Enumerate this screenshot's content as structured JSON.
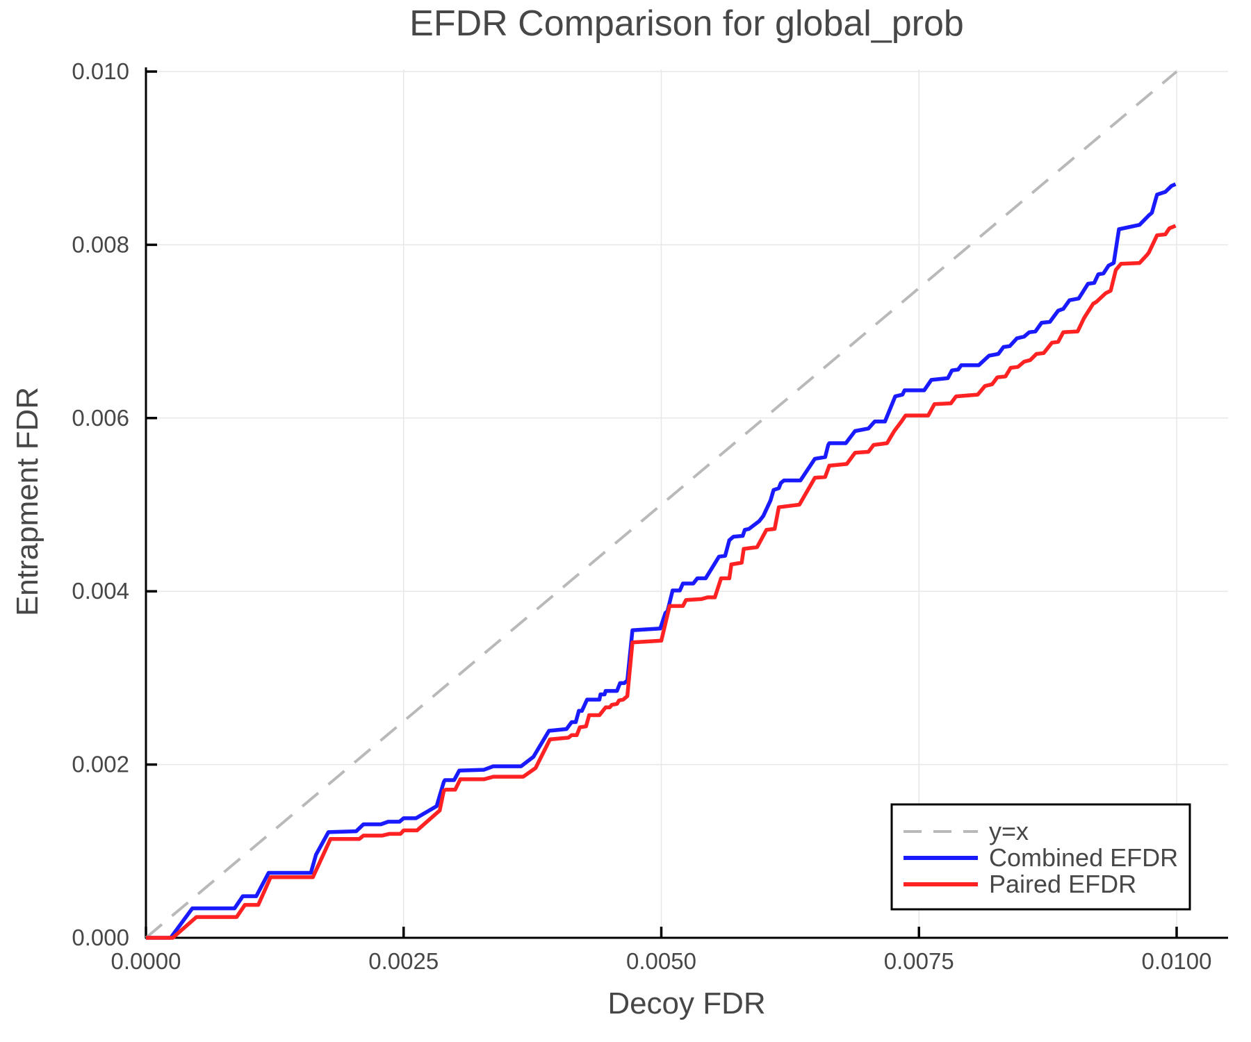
{
  "chart_data": {
    "type": "line",
    "title": "EFDR Comparison for global_prob",
    "xlabel": "Decoy FDR",
    "ylabel": "Entrapment FDR",
    "xlim": [
      0,
      0.0105
    ],
    "ylim": [
      0,
      0.0101
    ],
    "grid": true,
    "legend_position": "lower right",
    "colors": {
      "reference": "#b9b9b9",
      "combined": "#1a1aff",
      "paired": "#ff2222",
      "gridline": "#e7e7e7",
      "axis": "#000000",
      "text": "#474747"
    },
    "xticks": {
      "values": [
        0,
        0.0025,
        0.005,
        0.0075,
        0.01
      ],
      "labels": [
        "0.0000",
        "0.0025",
        "0.0050",
        "0.0075",
        "0.0100"
      ]
    },
    "yticks": {
      "values": [
        0,
        0.002,
        0.004,
        0.006,
        0.008,
        0.01
      ],
      "labels": [
        "0.000",
        "0.002",
        "0.004",
        "0.006",
        "0.008",
        "0.010"
      ]
    },
    "series": [
      {
        "name": "y=x",
        "color": "#b9b9b9",
        "dash": true,
        "width": 4,
        "points": [
          [
            0,
            0
          ],
          [
            0.01,
            0.01
          ]
        ]
      },
      {
        "name": "Combined EFDR",
        "color": "#1a1aff",
        "dash": false,
        "width": 5.5,
        "points": [
          [
            0,
            0
          ],
          [
            0.00024,
            0
          ],
          [
            0.00045,
            0.00034
          ],
          [
            0.00086,
            0.00034
          ],
          [
            0.00094,
            0.00048
          ],
          [
            0.00107,
            0.00048
          ],
          [
            0.00119,
            0.00075
          ],
          [
            0.0016,
            0.00075
          ],
          [
            0.00165,
            0.00096
          ],
          [
            0.00177,
            0.00122
          ],
          [
            0.00204,
            0.00123
          ],
          [
            0.00211,
            0.00131
          ],
          [
            0.00228,
            0.00131
          ],
          [
            0.00235,
            0.00134
          ],
          [
            0.00246,
            0.00134
          ],
          [
            0.0025,
            0.00138
          ],
          [
            0.00262,
            0.00138
          ],
          [
            0.00282,
            0.00152
          ],
          [
            0.00283,
            0.00156
          ],
          [
            0.00289,
            0.0018
          ],
          [
            0.0029,
            0.00182
          ],
          [
            0.00299,
            0.00182
          ],
          [
            0.00304,
            0.00193
          ],
          [
            0.00328,
            0.00194
          ],
          [
            0.00337,
            0.00198
          ],
          [
            0.00364,
            0.00198
          ],
          [
            0.00376,
            0.00209
          ],
          [
            0.00391,
            0.00239
          ],
          [
            0.00408,
            0.00241
          ],
          [
            0.00413,
            0.00249
          ],
          [
            0.00417,
            0.00249
          ],
          [
            0.0042,
            0.00262
          ],
          [
            0.00423,
            0.00262
          ],
          [
            0.00428,
            0.00275
          ],
          [
            0.0044,
            0.00275
          ],
          [
            0.00441,
            0.00281
          ],
          [
            0.00445,
            0.00281
          ],
          [
            0.00446,
            0.00285
          ],
          [
            0.00457,
            0.00285
          ],
          [
            0.0046,
            0.00294
          ],
          [
            0.00464,
            0.00294
          ],
          [
            0.00467,
            0.00297
          ],
          [
            0.00472,
            0.00355
          ],
          [
            0.00499,
            0.00357
          ],
          [
            0.00504,
            0.00375
          ],
          [
            0.00506,
            0.00377
          ],
          [
            0.00511,
            0.00401
          ],
          [
            0.00518,
            0.00401
          ],
          [
            0.00521,
            0.00409
          ],
          [
            0.00531,
            0.00409
          ],
          [
            0.00535,
            0.00415
          ],
          [
            0.00543,
            0.00415
          ],
          [
            0.00556,
            0.0044
          ],
          [
            0.00562,
            0.00441
          ],
          [
            0.00566,
            0.00459
          ],
          [
            0.0057,
            0.00463
          ],
          [
            0.00579,
            0.00464
          ],
          [
            0.00581,
            0.00471
          ],
          [
            0.00585,
            0.00472
          ],
          [
            0.00595,
            0.00481
          ],
          [
            0.00599,
            0.00487
          ],
          [
            0.00606,
            0.00505
          ],
          [
            0.00609,
            0.00517
          ],
          [
            0.00614,
            0.00519
          ],
          [
            0.00616,
            0.00525
          ],
          [
            0.00619,
            0.00528
          ],
          [
            0.00635,
            0.00528
          ],
          [
            0.00649,
            0.00553
          ],
          [
            0.00659,
            0.00555
          ],
          [
            0.00662,
            0.00569
          ],
          [
            0.00663,
            0.00571
          ],
          [
            0.00679,
            0.00571
          ],
          [
            0.00688,
            0.00585
          ],
          [
            0.00701,
            0.00588
          ],
          [
            0.00707,
            0.00596
          ],
          [
            0.00717,
            0.00596
          ],
          [
            0.00727,
            0.00625
          ],
          [
            0.00734,
            0.00627
          ],
          [
            0.00736,
            0.00632
          ],
          [
            0.00755,
            0.00632
          ],
          [
            0.00762,
            0.00644
          ],
          [
            0.00778,
            0.00646
          ],
          [
            0.00782,
            0.00655
          ],
          [
            0.00788,
            0.00656
          ],
          [
            0.00791,
            0.00661
          ],
          [
            0.00808,
            0.00661
          ],
          [
            0.00818,
            0.00672
          ],
          [
            0.00827,
            0.00674
          ],
          [
            0.00832,
            0.00682
          ],
          [
            0.00838,
            0.00683
          ],
          [
            0.00845,
            0.00692
          ],
          [
            0.00852,
            0.00694
          ],
          [
            0.00857,
            0.00699
          ],
          [
            0.00863,
            0.007
          ],
          [
            0.00869,
            0.0071
          ],
          [
            0.00877,
            0.00711
          ],
          [
            0.00885,
            0.00724
          ],
          [
            0.0089,
            0.00726
          ],
          [
            0.00896,
            0.00736
          ],
          [
            0.00905,
            0.00738
          ],
          [
            0.00914,
            0.00755
          ],
          [
            0.0092,
            0.00756
          ],
          [
            0.00924,
            0.00766
          ],
          [
            0.00929,
            0.00767
          ],
          [
            0.00934,
            0.00776
          ],
          [
            0.00939,
            0.00779
          ],
          [
            0.00944,
            0.00818
          ],
          [
            0.00964,
            0.00823
          ],
          [
            0.00973,
            0.00834
          ],
          [
            0.00976,
            0.00837
          ],
          [
            0.00981,
            0.00858
          ],
          [
            0.00989,
            0.00861
          ],
          [
            0.00995,
            0.00868
          ],
          [
            0.00999,
            0.0087
          ]
        ]
      },
      {
        "name": "Paired EFDR",
        "color": "#ff2222",
        "dash": false,
        "width": 5.5,
        "points": [
          [
            0,
            0
          ],
          [
            0.00026,
            0
          ],
          [
            0.00049,
            0.00024
          ],
          [
            0.00088,
            0.00024
          ],
          [
            0.00096,
            0.00038
          ],
          [
            0.00109,
            0.00038
          ],
          [
            0.00121,
            0.0007
          ],
          [
            0.00162,
            0.0007
          ],
          [
            0.00179,
            0.00114
          ],
          [
            0.00207,
            0.00114
          ],
          [
            0.00211,
            0.00118
          ],
          [
            0.00229,
            0.00118
          ],
          [
            0.00236,
            0.0012
          ],
          [
            0.00247,
            0.0012
          ],
          [
            0.0025,
            0.00124
          ],
          [
            0.00263,
            0.00124
          ],
          [
            0.00285,
            0.00147
          ],
          [
            0.00289,
            0.0017
          ],
          [
            0.00291,
            0.00171
          ],
          [
            0.003,
            0.00171
          ],
          [
            0.00305,
            0.00183
          ],
          [
            0.00328,
            0.00183
          ],
          [
            0.00337,
            0.00186
          ],
          [
            0.00366,
            0.00186
          ],
          [
            0.00378,
            0.00196
          ],
          [
            0.00392,
            0.00229
          ],
          [
            0.0041,
            0.00231
          ],
          [
            0.00413,
            0.00234
          ],
          [
            0.00418,
            0.00234
          ],
          [
            0.00421,
            0.00243
          ],
          [
            0.00427,
            0.00244
          ],
          [
            0.0043,
            0.00257
          ],
          [
            0.0044,
            0.00257
          ],
          [
            0.00446,
            0.00266
          ],
          [
            0.0045,
            0.00266
          ],
          [
            0.00452,
            0.00269
          ],
          [
            0.00457,
            0.0027
          ],
          [
            0.00459,
            0.00274
          ],
          [
            0.00463,
            0.00275
          ],
          [
            0.00467,
            0.00279
          ],
          [
            0.00472,
            0.00341
          ],
          [
            0.005,
            0.00343
          ],
          [
            0.00508,
            0.00383
          ],
          [
            0.00521,
            0.00383
          ],
          [
            0.00524,
            0.0039
          ],
          [
            0.00539,
            0.00391
          ],
          [
            0.00545,
            0.00393
          ],
          [
            0.00552,
            0.00393
          ],
          [
            0.00558,
            0.00415
          ],
          [
            0.00566,
            0.00415
          ],
          [
            0.00568,
            0.00431
          ],
          [
            0.00578,
            0.00433
          ],
          [
            0.0058,
            0.00449
          ],
          [
            0.00593,
            0.00451
          ],
          [
            0.00602,
            0.00471
          ],
          [
            0.0061,
            0.00472
          ],
          [
            0.00614,
            0.00497
          ],
          [
            0.00634,
            0.005
          ],
          [
            0.00649,
            0.00531
          ],
          [
            0.00659,
            0.00532
          ],
          [
            0.00663,
            0.00545
          ],
          [
            0.0068,
            0.00547
          ],
          [
            0.00688,
            0.0056
          ],
          [
            0.00701,
            0.00561
          ],
          [
            0.00706,
            0.00569
          ],
          [
            0.00719,
            0.00571
          ],
          [
            0.00726,
            0.00585
          ],
          [
            0.00733,
            0.00596
          ],
          [
            0.00737,
            0.00603
          ],
          [
            0.00759,
            0.00603
          ],
          [
            0.00765,
            0.00616
          ],
          [
            0.00781,
            0.00617
          ],
          [
            0.00786,
            0.00625
          ],
          [
            0.00807,
            0.00627
          ],
          [
            0.00814,
            0.00637
          ],
          [
            0.00821,
            0.00639
          ],
          [
            0.00826,
            0.00647
          ],
          [
            0.00834,
            0.00648
          ],
          [
            0.00839,
            0.00658
          ],
          [
            0.00846,
            0.00659
          ],
          [
            0.00852,
            0.00665
          ],
          [
            0.00858,
            0.00667
          ],
          [
            0.00864,
            0.00674
          ],
          [
            0.00871,
            0.00675
          ],
          [
            0.00879,
            0.00687
          ],
          [
            0.00885,
            0.00688
          ],
          [
            0.0089,
            0.00699
          ],
          [
            0.00904,
            0.007
          ],
          [
            0.0091,
            0.00715
          ],
          [
            0.00919,
            0.00732
          ],
          [
            0.00922,
            0.00734
          ],
          [
            0.00931,
            0.00744
          ],
          [
            0.00936,
            0.00747
          ],
          [
            0.00941,
            0.00771
          ],
          [
            0.00946,
            0.00778
          ],
          [
            0.00964,
            0.00779
          ],
          [
            0.00971,
            0.00788
          ],
          [
            0.00973,
            0.00791
          ],
          [
            0.00981,
            0.00811
          ],
          [
            0.00989,
            0.00812
          ],
          [
            0.00993,
            0.00819
          ],
          [
            0.00999,
            0.00822
          ]
        ]
      }
    ]
  }
}
